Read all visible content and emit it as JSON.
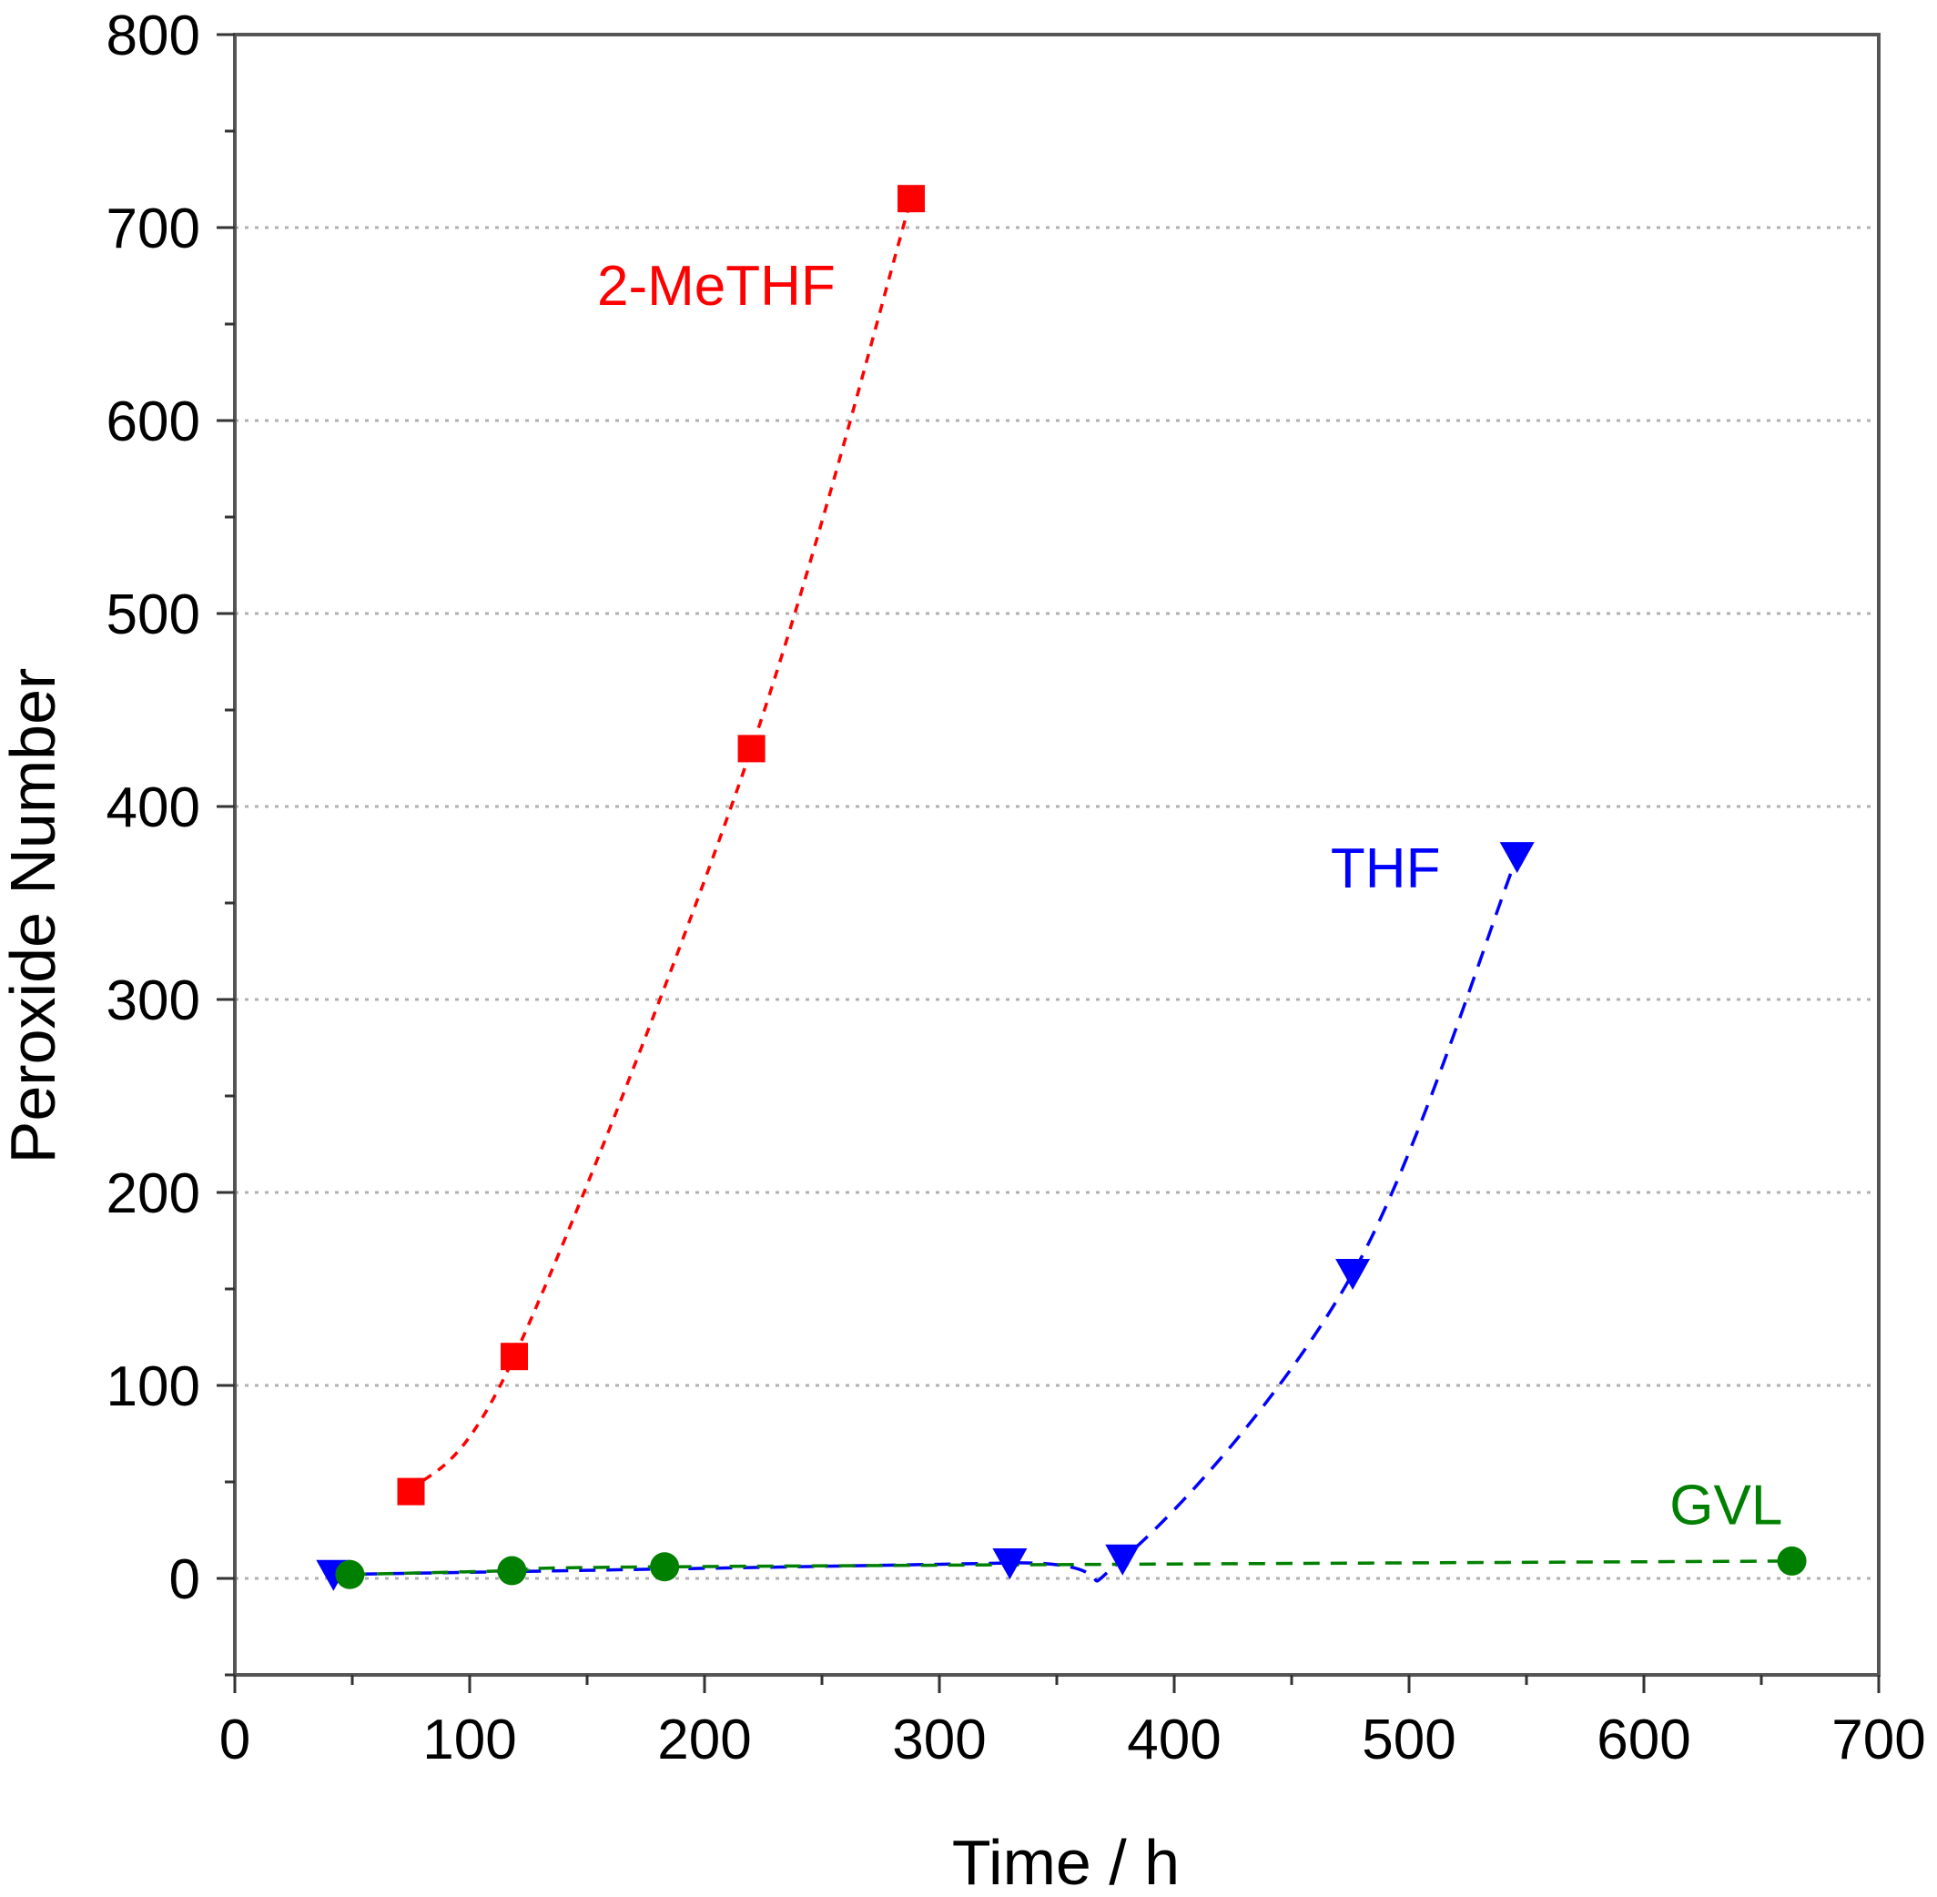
{
  "chart_data": {
    "type": "scatter",
    "xlabel": "Time / h",
    "ylabel": "Peroxide Number",
    "xlim": [
      0,
      700
    ],
    "ylim": [
      -50,
      800
    ],
    "xticks": [
      "0",
      "100",
      "200",
      "300",
      "400",
      "500",
      "600",
      "700"
    ],
    "yticks": [
      "0",
      "100",
      "200",
      "300",
      "400",
      "500",
      "600",
      "700",
      "800"
    ],
    "grid": "horizontal dotted",
    "series": [
      {
        "name": "2-MeTHF",
        "color": "#ff0000",
        "marker": "square",
        "line": "dashed",
        "x": [
          75,
          119,
          220,
          288
        ],
        "y": [
          45,
          115,
          430,
          715
        ]
      },
      {
        "name": "THF",
        "color": "#0000ff",
        "marker": "triangle-down",
        "line": "dashed",
        "x": [
          42,
          330,
          378,
          476,
          546
        ],
        "y": [
          2,
          8,
          10,
          158,
          374
        ]
      },
      {
        "name": "GVL",
        "color": "#008000",
        "marker": "circle",
        "line": "dashed",
        "x": [
          49,
          118,
          183,
          663
        ],
        "y": [
          2,
          4,
          6,
          9
        ]
      }
    ]
  }
}
